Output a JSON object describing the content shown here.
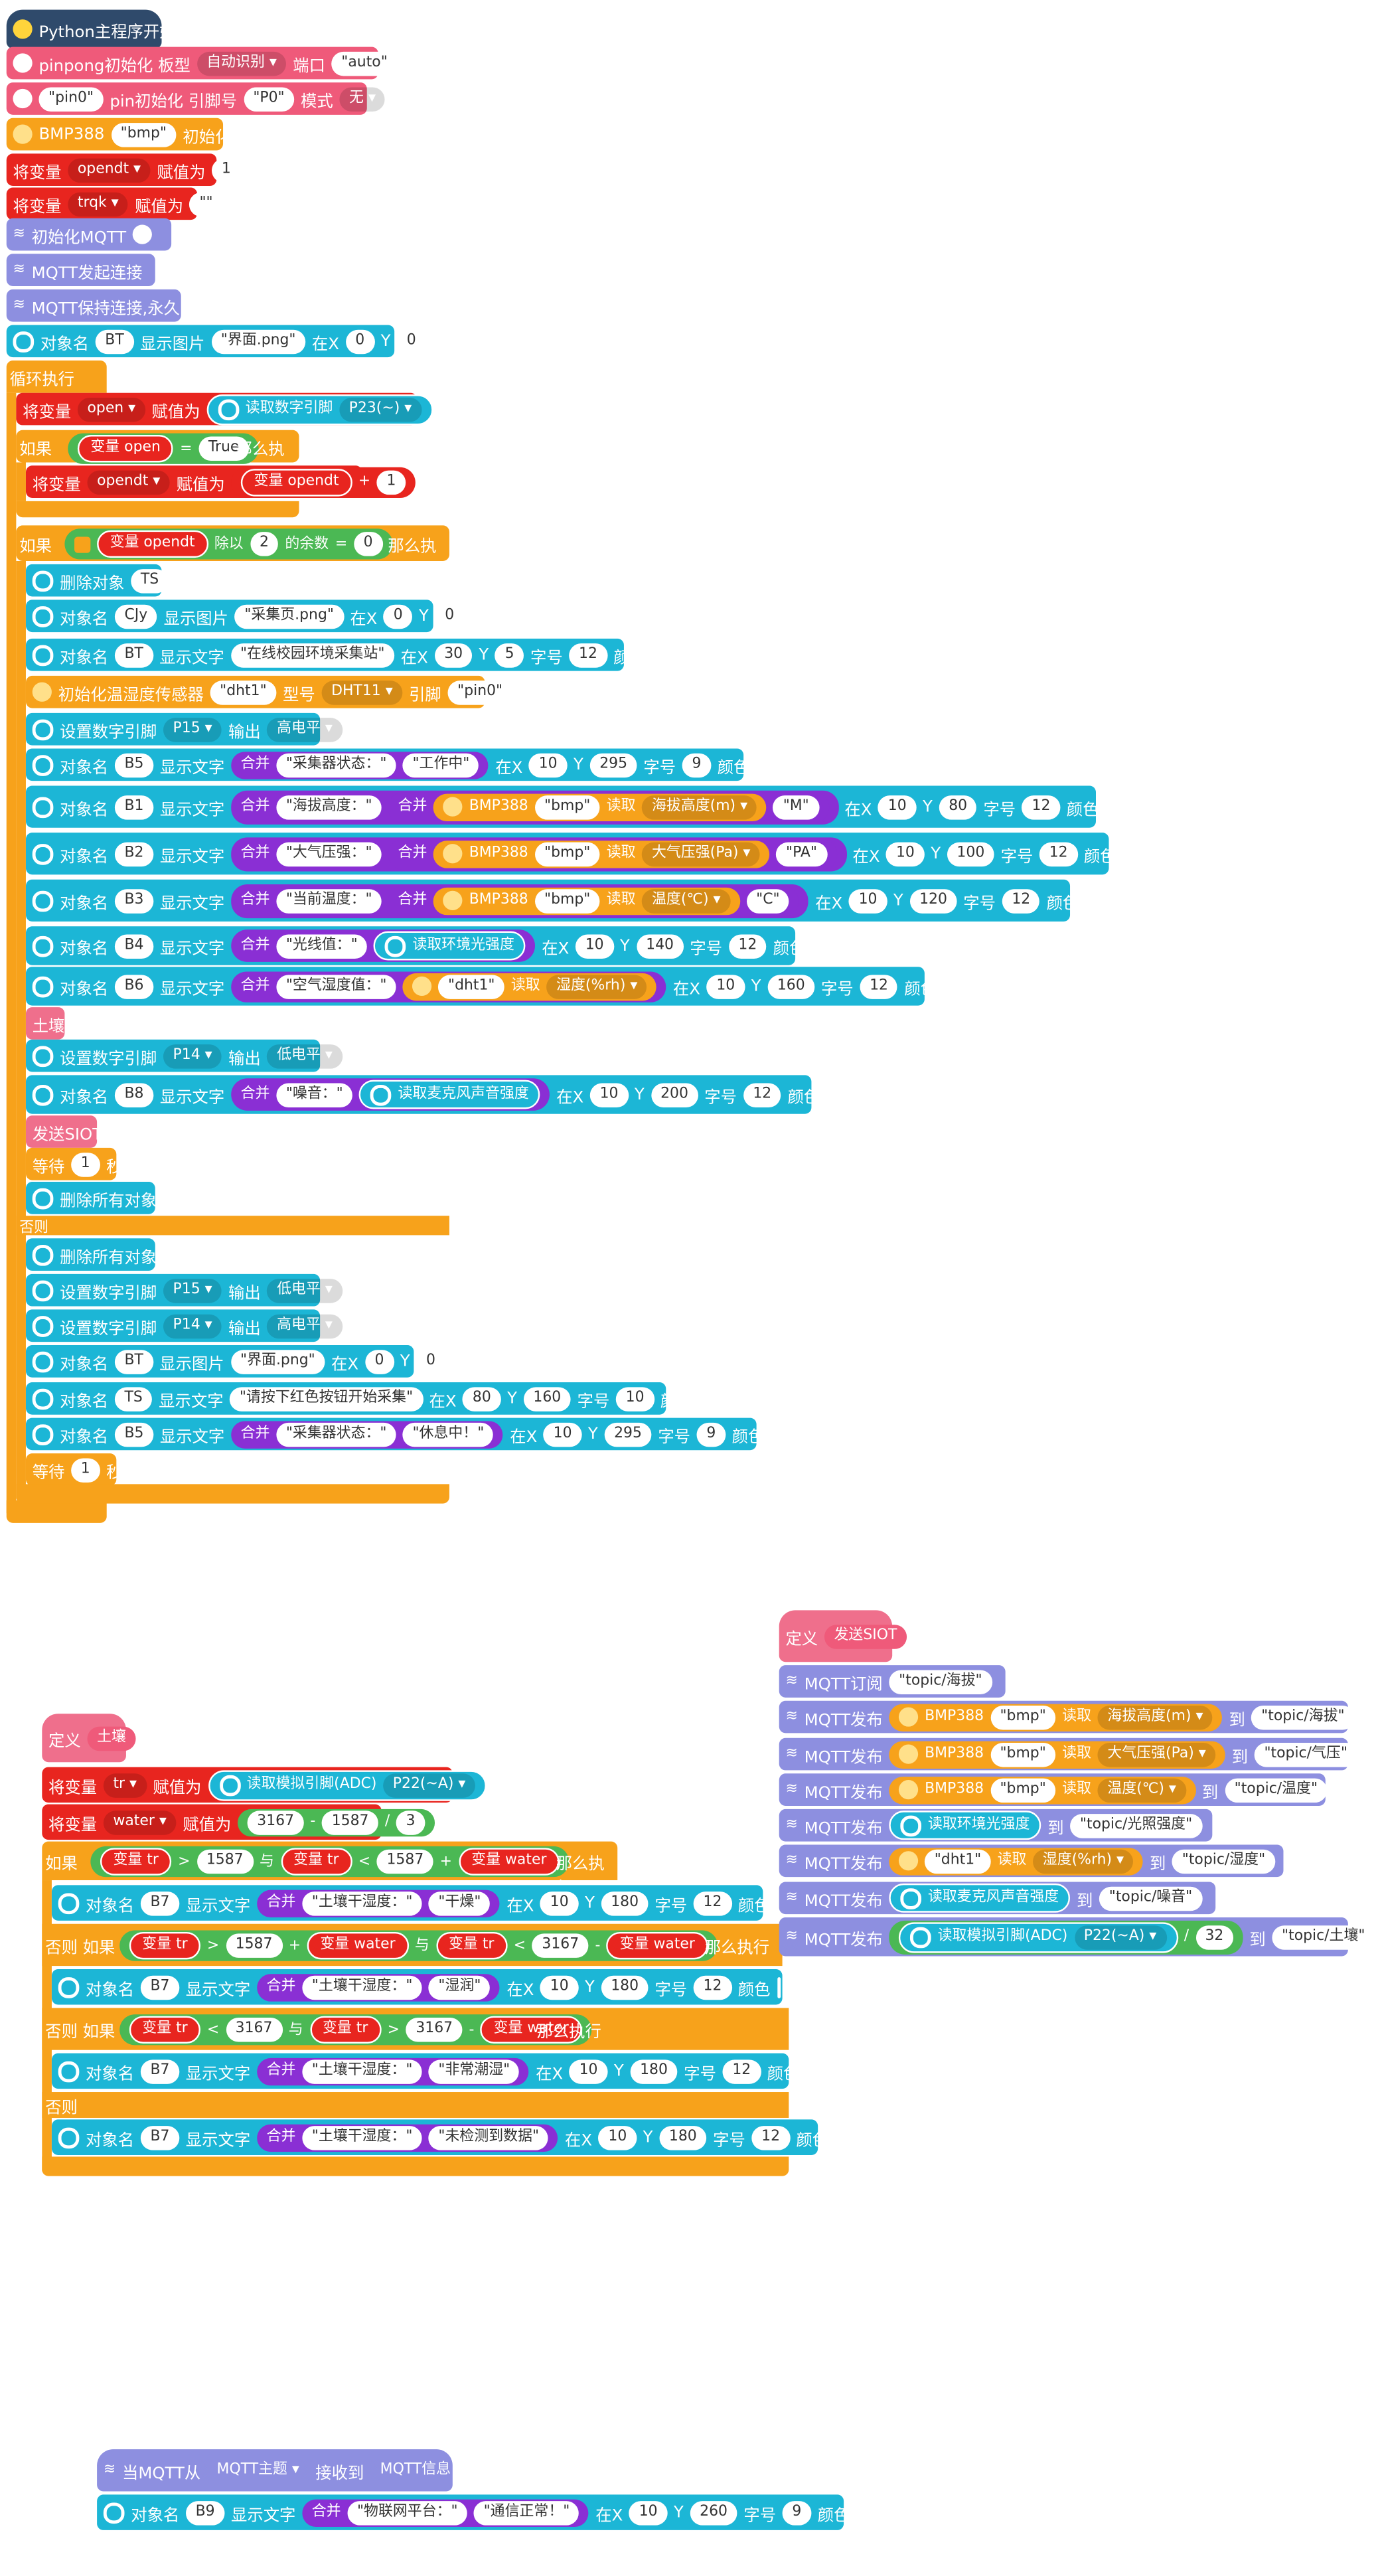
{
  "colors": {
    "python": "#2f4a6b",
    "pinpong": "#ef5a7a",
    "sensor": "#f7a21b",
    "variable": "#e8251f",
    "mqtt": "#8d8fe0",
    "gui": "#1cb6d6",
    "function": "#ef6f8c",
    "logic": "#4bb854",
    "text": "#8a2fd4"
  },
  "main": {
    "title": "Python主程序开始",
    "init1": "pinpong初始化 板型",
    "auto_label": "自动识别",
    "port_label": "端口",
    "port_val": "\"auto\"",
    "pin_init_pin": "\"pin0\"",
    "pin_init": "pin初始化 引脚号",
    "pin_p0": "\"P0\"",
    "mode_label": "模式",
    "mode_val": "无",
    "bmp": "BMP388",
    "bmp_name": "\"bmp\"",
    "bmp_init": "初始化",
    "set_var": "将变量",
    "opendt": "opendt",
    "assign": "赋值为",
    "one": "1",
    "trqk": "trqk",
    "empty": "\"\"",
    "mqtt_init": "初始化MQTT",
    "mqtt_connect": "MQTT发起连接",
    "mqtt_keep": "MQTT保持连接,永久",
    "obj_name": "对象名",
    "bt": "BT",
    "show_img": "显示图片",
    "img1": "\"界面.png\"",
    "x_lbl": "在X",
    "zero": "0",
    "y_lbl": "Y",
    "loop": "循环执行",
    "open": "open",
    "read_digital": "读取数字引脚",
    "p23": "P23(~)",
    "if": "如果",
    "var_open": "变量 open",
    "eq": "=",
    "true": "True",
    "then": "那么执行",
    "var_opendt": "变量 opendt",
    "plus": "+",
    "mod_div": "除以",
    "two": "2",
    "mod_rem": "的余数",
    "del_obj": "删除对象",
    "ts": "TS",
    "cjy": "CJy",
    "img2": "\"采集页.png\"",
    "show_text": "显示文字",
    "title_txt": "\"在线校园环境采集站\"",
    "x30": "30",
    "y5": "5",
    "font_lbl": "字号",
    "f12": "12",
    "color_lbl": "颜色",
    "dht_init": "初始化温湿度传感器",
    "dht_name": "\"dht1\"",
    "type_lbl": "型号",
    "dht11": "DHT11",
    "pin_lbl": "引脚",
    "pin0": "\"pin0\"",
    "set_dpin": "设置数字引脚",
    "p15": "P15",
    "output": "输出",
    "high": "高电平",
    "low": "低电平",
    "b5": "B5",
    "collector_state": "\"采集器状态：\"",
    "working": "\"工作中\"",
    "x10": "10",
    "y295": "295",
    "f9": "9",
    "b1": "B1",
    "merge": "合并",
    "alt_txt": "\"海拔高度：\"",
    "read": "读取",
    "alt": "海拔高度(m)",
    "m_txt": "\"M\"",
    "y80": "80",
    "b2": "B2",
    "pres_txt": "\"大气压强：\"",
    "pres": "大气压强(Pa)",
    "pa_txt": "\"PA\"",
    "y100": "100",
    "b3": "B3",
    "temp_txt": "\"当前温度：\"",
    "temp": "温度(℃)",
    "c_txt": "\"C\"",
    "y120": "120",
    "b4": "B4",
    "light_txt": "\"光线值：\"",
    "read_light": "读取环境光强度",
    "y140": "140",
    "b6": "B6",
    "hum_txt": "\"空气湿度值：\"",
    "hum": "湿度(%rh)",
    "y160": "160",
    "soil_call": "土壤",
    "p14": "P14",
    "b8": "B8",
    "noise_txt": "\"噪音：\"",
    "read_noise": "读取麦克风声音强度",
    "y200": "200",
    "siot_call": "发送SIOT",
    "wait": "等待",
    "sec": "秒",
    "del_all": "删除所有对象",
    "else": "否则",
    "ts2": "TS",
    "prompt": "\"请按下红色按钮开始采集\"",
    "x80": "80",
    "y160b": "160",
    "f10": "10",
    "resting": "\"休息中！\""
  },
  "soil": {
    "def": "定义",
    "name": "土壤",
    "tr": "tr",
    "read_analog": "读取模拟引脚(ADC)",
    "p22": "P22(~A)",
    "water": "water",
    "n3167": "3167",
    "minus": "-",
    "n1587": "1587",
    "div": "/",
    "n3": "3",
    "var_tr": "变量 tr",
    "gt": ">",
    "lt": "<",
    "and": "与",
    "var_water": "变量 water",
    "b7": "B7",
    "soil_txt": "\"土壤干湿度：\"",
    "dry": "\"干燥\"",
    "moist": "\"湿润\"",
    "wet": "\"非常潮湿\"",
    "none": "\"未检测到数据\"",
    "x10": "10",
    "y180": "180",
    "f12": "12",
    "else_if": "否则 如果",
    "else": "否则",
    "then": "那么执行"
  },
  "siot": {
    "def": "定义",
    "name": "发送SIOT",
    "subscribe": "MQTT订阅",
    "topic_alt": "\"topic/海拔\"",
    "publish": "MQTT发布",
    "to": "到",
    "topic_pres": "\"topic/气压\"",
    "topic_temp": "\"topic/温度\"",
    "topic_light": "\"topic/光照强度\"",
    "topic_hum": "\"topic/湿度\"",
    "topic_noise": "\"topic/噪音\"",
    "topic_soil": "\"topic/土壤\"",
    "n32": "32"
  },
  "recv": {
    "when": "当MQTT从",
    "topic": "MQTT主题",
    "recv": "接收到",
    "msg": "MQTT信息",
    "b9": "B9",
    "iot_txt": "\"物联网平台：\"",
    "ok": "\"通信正常！\"",
    "y260": "260",
    "f9": "9"
  }
}
